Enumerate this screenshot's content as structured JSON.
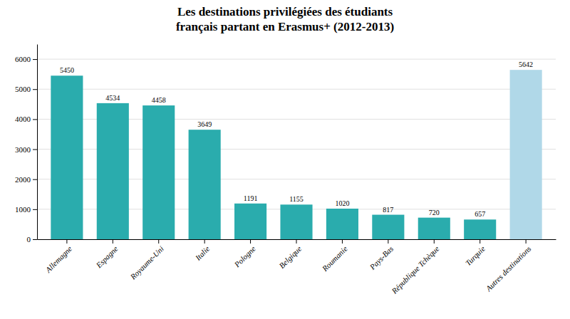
{
  "chart_data": {
    "type": "bar",
    "title": "Les destinations privilégiées des étudiants\nfrançais partant en Erasmus+ (2012-2013)",
    "categories": [
      "Allemagne",
      "Espagne",
      "Royaume-Uni",
      "Italie",
      "Pologne",
      "Belgique",
      "Roumanie",
      "Pays-Bas",
      "République Tchèque",
      "Turquie",
      "Autres destinations"
    ],
    "values": [
      5450,
      4534,
      4458,
      3649,
      1191,
      1155,
      1020,
      817,
      720,
      657,
      5642
    ],
    "colors": [
      "#2AACAD",
      "#2AACAD",
      "#2AACAD",
      "#2AACAD",
      "#2AACAD",
      "#2AACAD",
      "#2AACAD",
      "#2AACAD",
      "#2AACAD",
      "#2AACAD",
      "#B0D8E8"
    ],
    "ylim": [
      0,
      6500
    ],
    "yticks": [
      0,
      1000,
      2000,
      3000,
      4000,
      5000,
      6000
    ],
    "grid": true,
    "data_labels": true
  }
}
